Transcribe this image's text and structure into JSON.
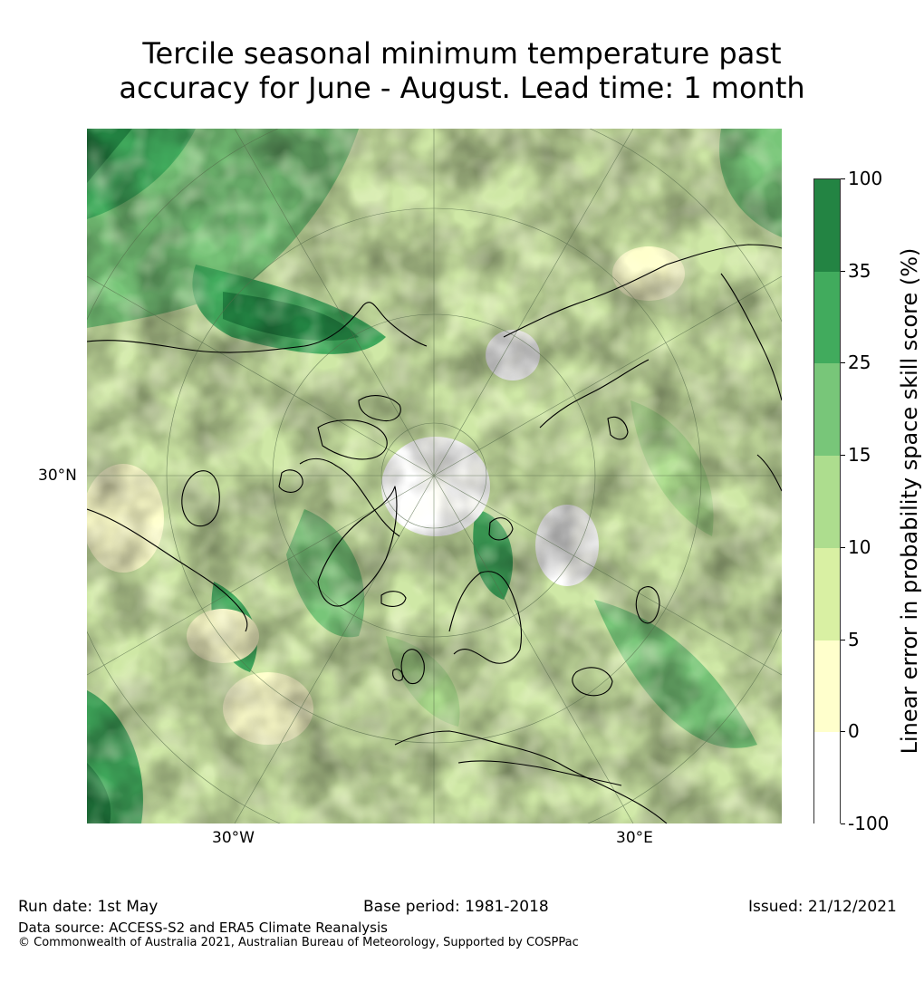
{
  "title": {
    "line1": "Tercile seasonal minimum temperature past",
    "line2": "accuracy for June - August. Lead time: 1 month"
  },
  "map": {
    "projection": "north-polar-stereographic",
    "lat_label": "30°N",
    "lon_labels": [
      "30°W",
      "30°E"
    ]
  },
  "colorbar": {
    "label": "Linear error in probability space skill score (%)",
    "ticks": [
      "100",
      "35",
      "25",
      "15",
      "10",
      "5",
      "0",
      "-100"
    ],
    "bins": [
      {
        "range": "35 to 100",
        "color": "#238443"
      },
      {
        "range": "25 to 35",
        "color": "#41ab5d"
      },
      {
        "range": "15 to 25",
        "color": "#78c679"
      },
      {
        "range": "10 to 15",
        "color": "#addd8e"
      },
      {
        "range": "5 to 10",
        "color": "#d9f0a3"
      },
      {
        "range": "0 to 5",
        "color": "#ffffcc"
      },
      {
        "range": "-100 to 0",
        "color": "#ffffff"
      }
    ]
  },
  "footer": {
    "run_date": "Run date: 1st May",
    "base_period": "Base period: 1981-2018",
    "issued": "Issued: 21/12/2021",
    "data_source": "Data source: ACCESS-S2 and ERA5 Climate Reanalysis",
    "copyright": "© Commonwealth of Australia 2021, Australian Bureau of Meteorology, Supported by COSPPac"
  }
}
